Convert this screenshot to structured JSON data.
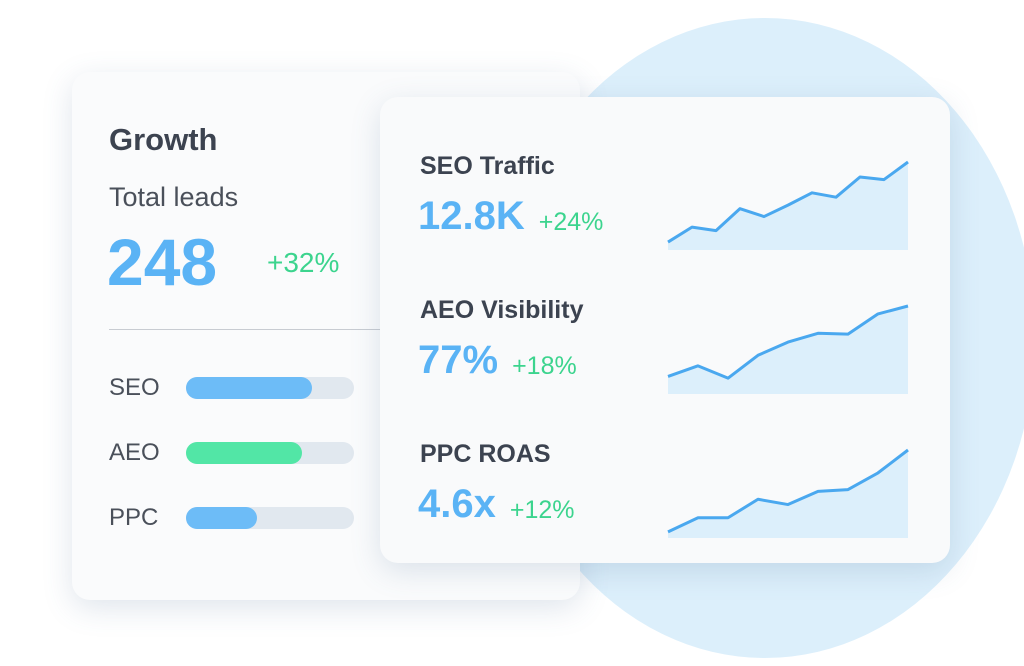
{
  "growth": {
    "title": "Growth",
    "label": "Total leads",
    "value": "248",
    "change": "+32%",
    "bars": {
      "range": [
        0,
        100
      ],
      "items": [
        {
          "name": "SEO",
          "value": 75,
          "color": "#6dbcf7"
        },
        {
          "name": "AEO",
          "value": 69,
          "color": "#52e6a6"
        },
        {
          "name": "PPC",
          "value": 42,
          "color": "#6dbcf7"
        }
      ]
    }
  },
  "metrics": {
    "trend_range": [
      0,
      100
    ],
    "items": [
      {
        "title": "SEO Traffic",
        "value": "12.8K",
        "change": "+24%",
        "trend": [
          9,
          26,
          22,
          47,
          38,
          51,
          65,
          60,
          83,
          80,
          100
        ]
      },
      {
        "title": "AEO Visibility",
        "value": "77%",
        "change": "+18%",
        "trend": [
          20,
          32,
          18,
          44,
          59,
          69,
          68,
          91,
          100
        ]
      },
      {
        "title": "PPC ROAS",
        "value": "4.6x",
        "change": "+12%",
        "trend": [
          7,
          23,
          23,
          44,
          38,
          53,
          55,
          74,
          100
        ]
      }
    ]
  }
}
